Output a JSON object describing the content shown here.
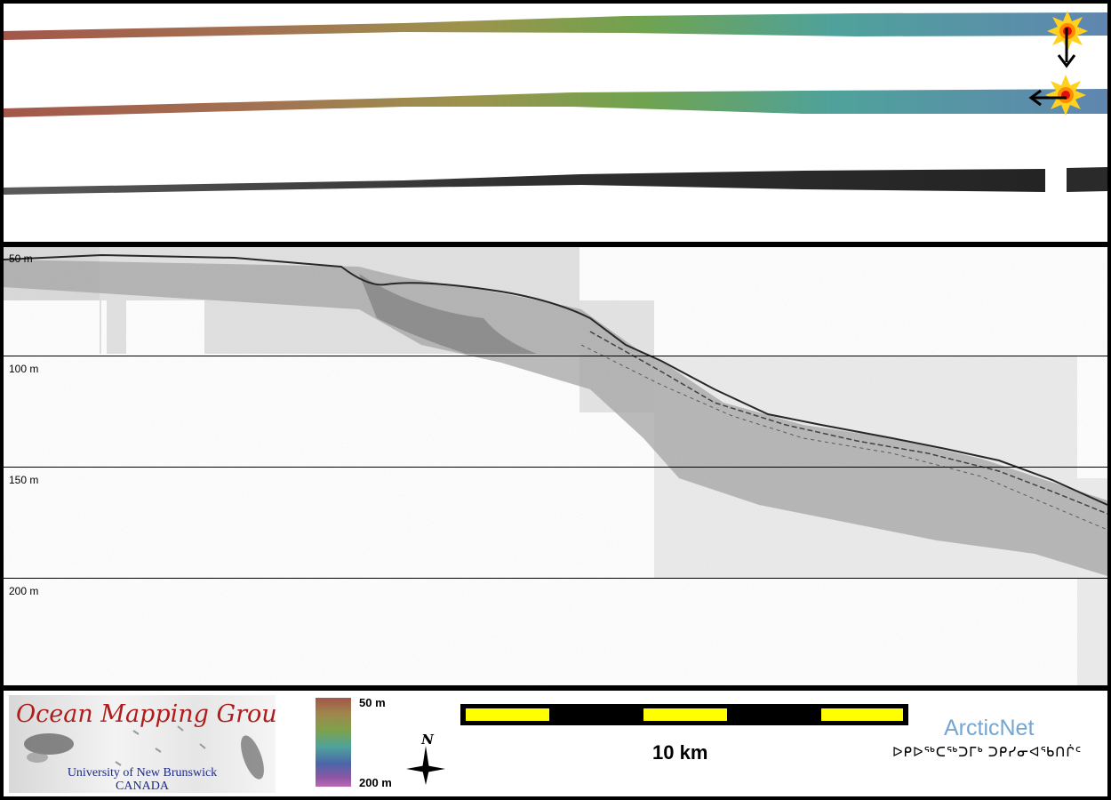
{
  "profile": {
    "depth_labels": [
      "50 m",
      "100 m",
      "150 m",
      "200 m"
    ]
  },
  "footer": {
    "logo_title": "Ocean Mapping Group",
    "logo_university": "University of New Brunswick",
    "logo_country": "CANADA",
    "colorbar": {
      "top_label": "50 m",
      "bottom_label": "200 m",
      "colors": [
        "#a2574a",
        "#a0864c",
        "#7fa14a",
        "#4fa39b",
        "#4b66a8",
        "#bb6ab3"
      ]
    },
    "north_label": "N",
    "scale_label": "10 km",
    "arcticnet_logo": "ArcticNet",
    "arcticnet_syllabics": "ᐅᑭᐅᖅᑕᖅᑐᒥᒃ ᑐᑭᓯᓂᐊᖃᑎᒌᑦ"
  }
}
